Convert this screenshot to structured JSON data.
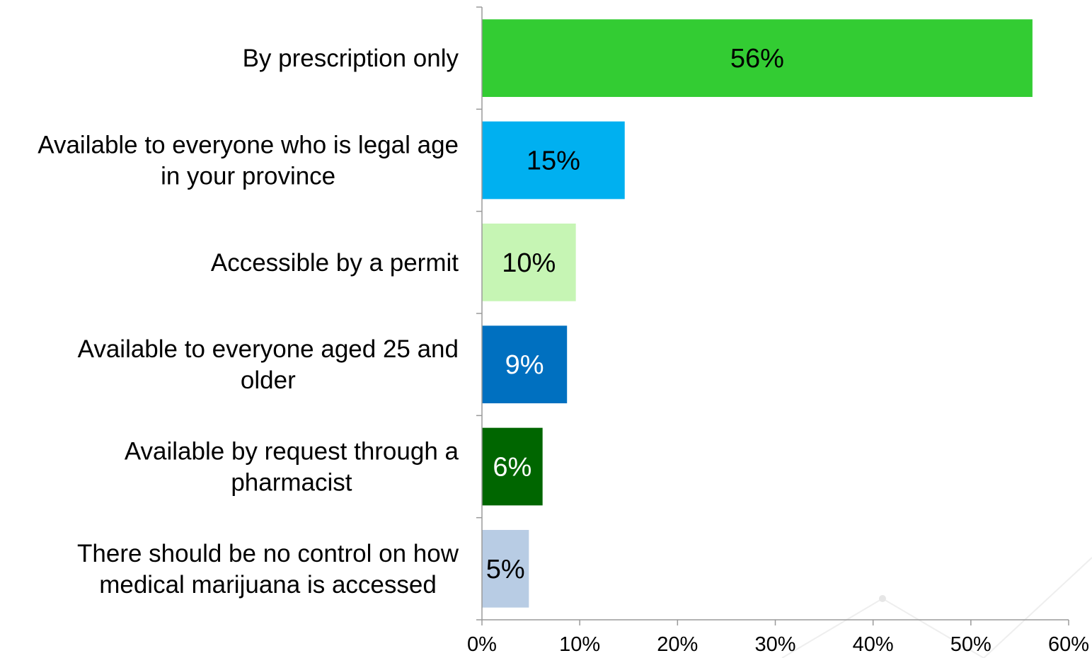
{
  "chart_data": {
    "type": "bar",
    "orientation": "horizontal",
    "categories": [
      [
        "By prescription only"
      ],
      [
        "Available to everyone who is legal age",
        "in your province"
      ],
      [
        "Accessible by a permit"
      ],
      [
        "Available to everyone aged 25 and",
        "older"
      ],
      [
        "Available by request through a",
        "pharmacist"
      ],
      [
        "There should be no control on how",
        "medical marijuana is accessed"
      ]
    ],
    "values": [
      56.3,
      14.6,
      9.6,
      8.7,
      6.2,
      4.8
    ],
    "data_labels": [
      "56%",
      "15%",
      "10%",
      "9%",
      "6%",
      "5%"
    ],
    "bar_colors": [
      "#33CC33",
      "#00B0F0",
      "#C6F5B4",
      "#0070C0",
      "#006600",
      "#B8CCE4"
    ],
    "label_colors": [
      "#000000",
      "#000000",
      "#000000",
      "#FFFFFF",
      "#FFFFFF",
      "#000000"
    ],
    "xlim": [
      0,
      60
    ],
    "x_ticks": [
      "0%",
      "10%",
      "20%",
      "30%",
      "40%",
      "50%",
      "60%"
    ],
    "grid": false,
    "legend": "none"
  }
}
